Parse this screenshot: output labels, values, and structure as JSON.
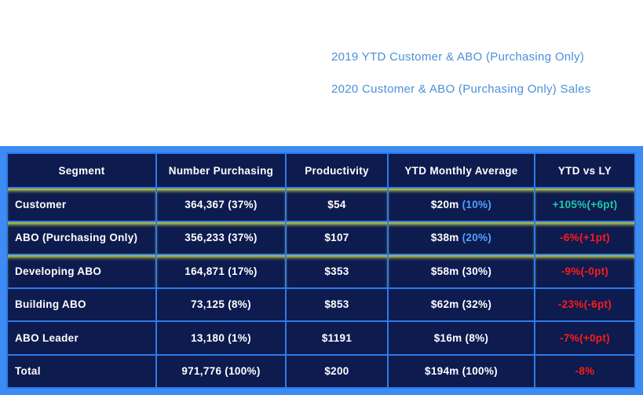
{
  "headlines": [
    "2019 YTD Customer & ABO (Purchasing Only)",
    "2020 Customer & ABO (Purchasing Only) Sales"
  ],
  "colors": {
    "accent": "#4a90d9",
    "frame": "#3d8cf5",
    "table_bg": "#0d1b4f",
    "positive": "#20c9a8",
    "negative": "#ff1a1a"
  },
  "table": {
    "headers": [
      "Segment",
      "Number Purchasing",
      "Productivity",
      "YTD Monthly Average",
      "YTD vs LY"
    ],
    "rows": [
      {
        "segment": "Customer",
        "number": "364,367 (37%)",
        "productivity": "$54",
        "avg_value": "$20m",
        "avg_pct": "(10%)",
        "ytd": "+105%(+6pt)",
        "trend": "positive"
      },
      {
        "segment": "ABO (Purchasing Only)",
        "number": "356,233 (37%)",
        "productivity": "$107",
        "avg_value": "$38m",
        "avg_pct": "(20%)",
        "ytd": "-6%(+1pt)",
        "trend": "negative"
      },
      {
        "segment": "Developing ABO",
        "number": "164,871 (17%)",
        "productivity": "$353",
        "avg_value": "$58m (30%)",
        "avg_pct": "",
        "ytd": "-9%(-0pt)",
        "trend": "negative"
      },
      {
        "segment": "Building ABO",
        "number": "73,125 (8%)",
        "productivity": "$853",
        "avg_value": "$62m (32%)",
        "avg_pct": "",
        "ytd": "-23%(-6pt)",
        "trend": "negative"
      },
      {
        "segment": "ABO Leader",
        "number": "13,180 (1%)",
        "productivity": "$1191",
        "avg_value": "$16m (8%)",
        "avg_pct": "",
        "ytd": "-7%(+0pt)",
        "trend": "negative"
      },
      {
        "segment": "Total",
        "number": "971,776 (100%)",
        "productivity": "$200",
        "avg_value": "$194m (100%)",
        "avg_pct": "",
        "ytd": "-8%",
        "trend": "negative"
      }
    ]
  }
}
